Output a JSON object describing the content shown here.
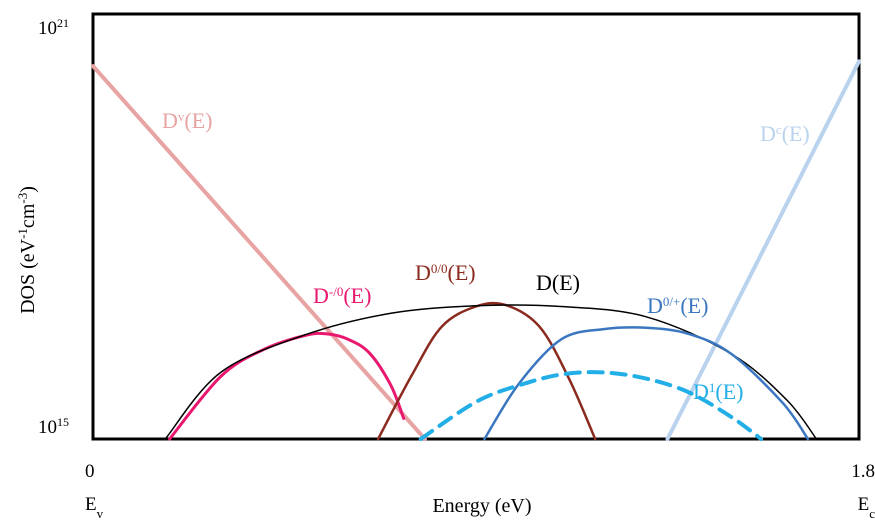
{
  "chart_data": {
    "type": "line",
    "title": "",
    "xlabel": "Energy (eV)",
    "ylabel": "DOS (eV-1cm-3)",
    "y_scale": "log",
    "xlim": [
      0,
      1.8
    ],
    "ylim_exponent": [
      15,
      21
    ],
    "x_ticks": [
      {
        "value": 0,
        "label": "0",
        "sublabel": "Ev"
      },
      {
        "value": 1.8,
        "label": "1.8",
        "sublabel": "Ec"
      }
    ],
    "y_ticks": [
      {
        "exponent": 15,
        "base": "10",
        "exp": "15"
      },
      {
        "exponent": 21,
        "base": "10",
        "exp": "21"
      }
    ],
    "series": [
      {
        "name": "Dv(E)",
        "label_main": "D",
        "label_sup": "v",
        "label_tail": "(E)",
        "color": "#e8a3a3",
        "width": 4,
        "dash": false,
        "x": [
          0.0,
          0.78
        ],
        "y_exp": [
          20.43,
          15.0
        ]
      },
      {
        "name": "Dc(E)",
        "label_main": "D",
        "label_sup": "c",
        "label_tail": "(E)",
        "color": "#b9d3ee",
        "width": 4,
        "dash": false,
        "x": [
          1.35,
          1.8
        ],
        "y_exp": [
          15.0,
          20.5
        ]
      },
      {
        "name": "D-/0(E)",
        "label_main": "D",
        "label_sup": "-/0",
        "label_tail": "(E)",
        "color": "#e8186f",
        "width": 3,
        "dash": false,
        "x": [
          0.18,
          0.3,
          0.4,
          0.5,
          0.55,
          0.6,
          0.65,
          0.7,
          0.73
        ],
        "y_exp": [
          15.0,
          15.91,
          16.3,
          16.51,
          16.53,
          16.45,
          16.25,
          15.78,
          15.3
        ]
      },
      {
        "name": "D0/0(E)",
        "label_main": "D",
        "label_sup": "0/0",
        "label_tail": "(E)",
        "color": "#8b2b1f",
        "width": 2.5,
        "dash": false,
        "x": [
          0.67,
          0.75,
          0.82,
          0.9,
          0.97,
          1.05,
          1.12,
          1.18
        ],
        "y_exp": [
          15.0,
          15.94,
          16.64,
          16.93,
          16.95,
          16.63,
          15.86,
          15.0
        ]
      },
      {
        "name": "D(E)",
        "label_main": "D",
        "label_sup": "",
        "label_tail": "(E)",
        "color": "#000000",
        "width": 1.5,
        "dash": false,
        "x": [
          0.17,
          0.3,
          0.5,
          0.7,
          0.9,
          1.1,
          1.3,
          1.5,
          1.63,
          1.7
        ],
        "y_exp": [
          15.0,
          15.97,
          16.52,
          16.83,
          16.94,
          16.93,
          16.78,
          16.24,
          15.57,
          15.0
        ]
      },
      {
        "name": "D0/+(E)",
        "label_main": "D",
        "label_sup": "0/+",
        "label_tail": "(E)",
        "color": "#3a77c0",
        "width": 2.5,
        "dash": false,
        "x": [
          0.92,
          1.0,
          1.1,
          1.2,
          1.3,
          1.4,
          1.5,
          1.62,
          1.68
        ],
        "y_exp": [
          15.0,
          15.8,
          16.45,
          16.6,
          16.62,
          16.53,
          16.24,
          15.53,
          15.0
        ]
      },
      {
        "name": "D1(E)",
        "label_main": "D",
        "label_sup": "1",
        "label_tail": "(E)",
        "color": "#22aee6",
        "width": 4,
        "dash": true,
        "x": [
          0.77,
          0.9,
          1.0,
          1.1,
          1.2,
          1.3,
          1.4,
          1.5,
          1.57
        ],
        "y_exp": [
          15.0,
          15.54,
          15.78,
          15.94,
          15.97,
          15.88,
          15.68,
          15.32,
          15.0
        ]
      }
    ]
  }
}
